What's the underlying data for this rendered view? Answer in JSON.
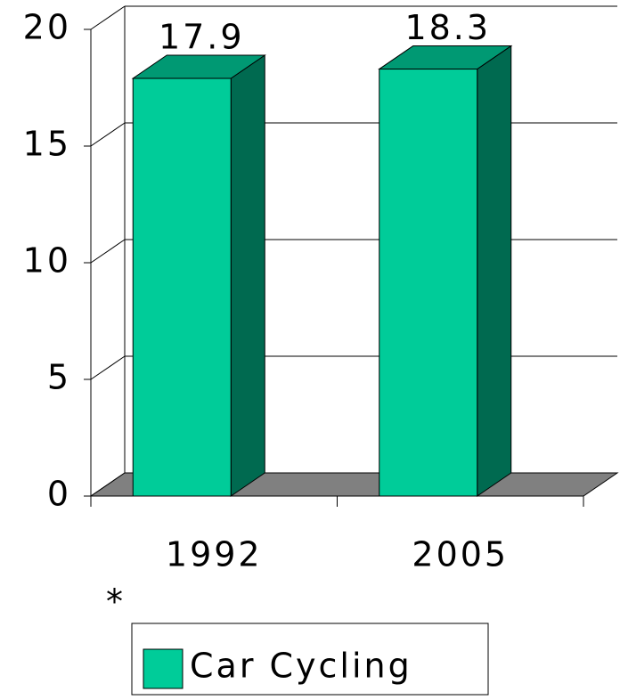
{
  "chart_data": {
    "type": "bar3d",
    "categories": [
      "1992",
      "2005"
    ],
    "series": [
      {
        "name": "Car Cycling",
        "color": "#00cc99",
        "values": [
          17.9,
          18.3
        ]
      }
    ],
    "ylim": [
      0,
      20
    ],
    "yticks": [
      0,
      5,
      10,
      15,
      20
    ],
    "grid": true,
    "annotation": "*",
    "legend": "bottom"
  }
}
